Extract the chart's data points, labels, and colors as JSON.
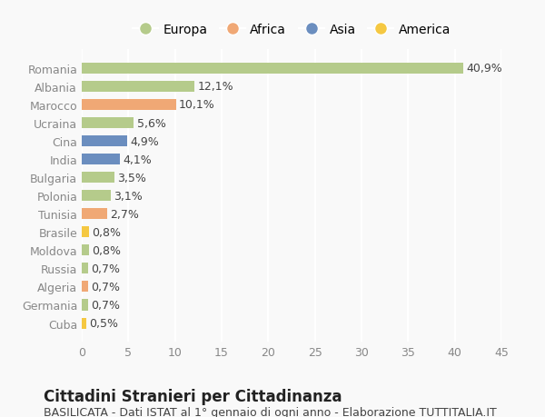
{
  "countries": [
    "Romania",
    "Albania",
    "Marocco",
    "Ucraina",
    "Cina",
    "India",
    "Bulgaria",
    "Polonia",
    "Tunisia",
    "Brasile",
    "Moldova",
    "Russia",
    "Algeria",
    "Germania",
    "Cuba"
  ],
  "values": [
    40.9,
    12.1,
    10.1,
    5.6,
    4.9,
    4.1,
    3.5,
    3.1,
    2.7,
    0.8,
    0.8,
    0.7,
    0.7,
    0.7,
    0.5
  ],
  "labels": [
    "40,9%",
    "12,1%",
    "10,1%",
    "5,6%",
    "4,9%",
    "4,1%",
    "3,5%",
    "3,1%",
    "2,7%",
    "0,8%",
    "0,8%",
    "0,7%",
    "0,7%",
    "0,7%",
    "0,5%"
  ],
  "continents": [
    "Europa",
    "Europa",
    "Africa",
    "Europa",
    "Asia",
    "Asia",
    "Europa",
    "Europa",
    "Africa",
    "America",
    "Europa",
    "Europa",
    "Africa",
    "Europa",
    "America"
  ],
  "continent_colors": {
    "Europa": "#b5cb8b",
    "Africa": "#f0a875",
    "Asia": "#6b8ebf",
    "America": "#f5c842"
  },
  "legend_order": [
    "Europa",
    "Africa",
    "Asia",
    "America"
  ],
  "title": "Cittadini Stranieri per Cittadinanza",
  "subtitle": "BASILICATA - Dati ISTAT al 1° gennaio di ogni anno - Elaborazione TUTTITALIA.IT",
  "xlim": [
    0,
    45
  ],
  "xticks": [
    0,
    5,
    10,
    15,
    20,
    25,
    30,
    35,
    40,
    45
  ],
  "background_color": "#f9f9f9",
  "grid_color": "#ffffff",
  "title_fontsize": 12,
  "subtitle_fontsize": 9,
  "label_fontsize": 9,
  "tick_fontsize": 9
}
